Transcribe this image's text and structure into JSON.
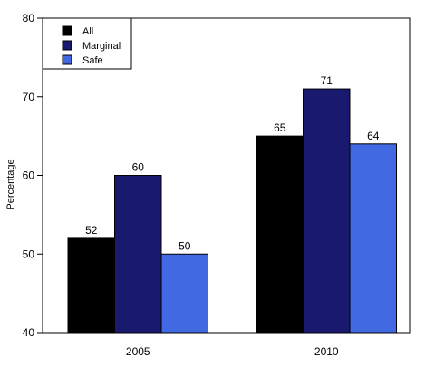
{
  "chart_data": {
    "type": "bar",
    "title": "",
    "xlabel": "",
    "ylabel": "Percentage",
    "ylim": [
      40,
      80
    ],
    "yticks": [
      40,
      50,
      60,
      70,
      80
    ],
    "categories": [
      "2005",
      "2010"
    ],
    "series": [
      {
        "name": "All",
        "color": "#000000",
        "values": [
          52,
          65
        ]
      },
      {
        "name": "Marginal",
        "color": "#191970",
        "values": [
          60,
          71
        ]
      },
      {
        "name": "Safe",
        "color": "#4169E1",
        "values": [
          50,
          64
        ]
      }
    ],
    "data_labels": true,
    "legend_position": "top-left",
    "grid": false
  }
}
